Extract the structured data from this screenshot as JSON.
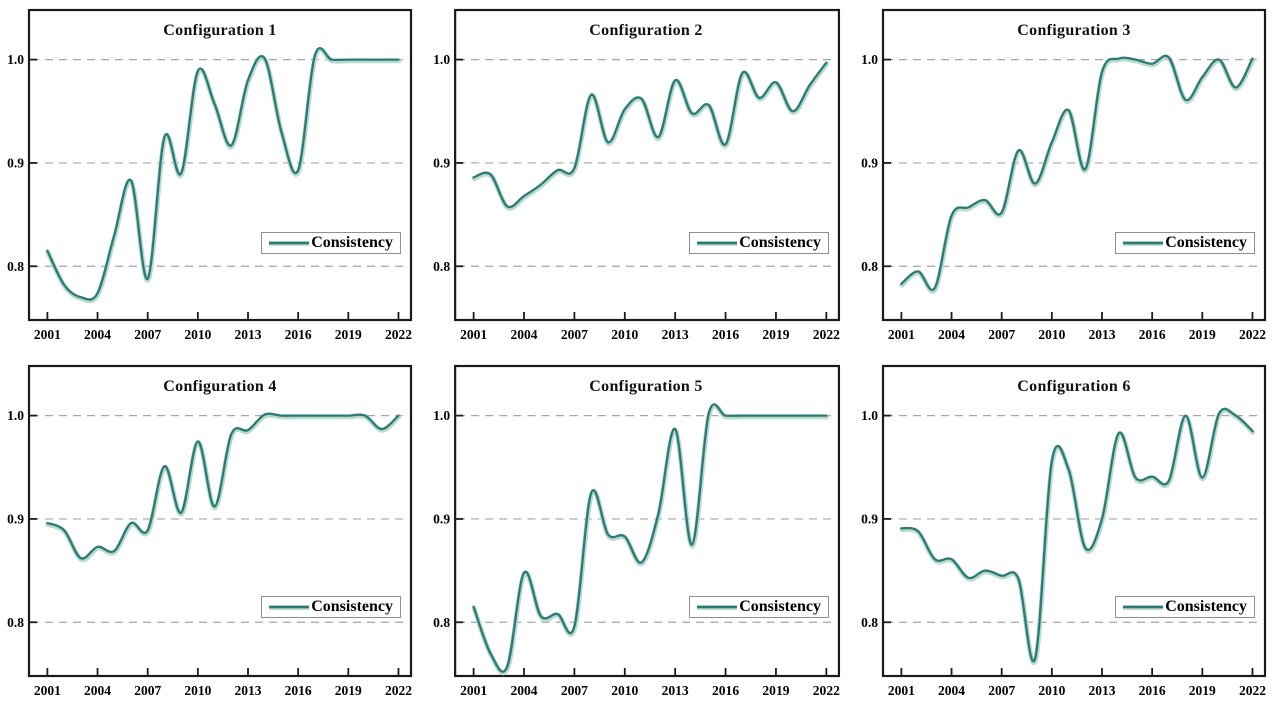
{
  "page": {
    "background": "#ffffff"
  },
  "style": {
    "line_color": "#2a7a77",
    "halo_color": "#b5d8ca",
    "grid_color": "#a5a5a5",
    "axis_color": "#1a1a1a",
    "text_color": "#000000"
  },
  "chart_data": [
    {
      "type": "line",
      "title": "Configuration 1",
      "legend": {
        "label": "Consistency",
        "position": "lower right"
      },
      "x": [
        2001,
        2002,
        2003,
        2004,
        2005,
        2006,
        2007,
        2008,
        2009,
        2010,
        2011,
        2012,
        2013,
        2014,
        2015,
        2016,
        2017,
        2018,
        2019,
        2020,
        2021,
        2022
      ],
      "series": [
        {
          "name": "Consistency",
          "values": [
            0.815,
            0.782,
            0.77,
            0.774,
            0.83,
            0.883,
            0.788,
            0.925,
            0.89,
            0.989,
            0.957,
            0.917,
            0.98,
            1.001,
            0.93,
            0.893,
            1.004,
            1.0,
            1.0,
            1.0,
            1.0,
            1.0
          ]
        }
      ],
      "xticks": [
        2001,
        2004,
        2007,
        2010,
        2013,
        2016,
        2019,
        2022
      ],
      "yticks": [
        0.8,
        0.9,
        1.0
      ],
      "xlim": [
        1999.9,
        2022.75
      ],
      "ylim": [
        0.748,
        1.048
      ],
      "xlabel": "",
      "ylabel": "",
      "grid": "horizontal-dashed"
    },
    {
      "type": "line",
      "title": "Configuration 2",
      "legend": {
        "label": "Consistency",
        "position": "lower right"
      },
      "x": [
        2001,
        2002,
        2003,
        2004,
        2005,
        2006,
        2007,
        2008,
        2009,
        2010,
        2011,
        2012,
        2013,
        2014,
        2015,
        2016,
        2017,
        2018,
        2019,
        2020,
        2021,
        2022
      ],
      "series": [
        {
          "name": "Consistency",
          "values": [
            0.886,
            0.889,
            0.858,
            0.868,
            0.879,
            0.893,
            0.895,
            0.966,
            0.92,
            0.952,
            0.962,
            0.925,
            0.98,
            0.948,
            0.956,
            0.918,
            0.987,
            0.963,
            0.978,
            0.95,
            0.975,
            0.997
          ]
        }
      ],
      "xticks": [
        2001,
        2004,
        2007,
        2010,
        2013,
        2016,
        2019,
        2022
      ],
      "yticks": [
        0.8,
        0.9,
        1.0
      ],
      "xlim": [
        1999.9,
        2022.75
      ],
      "ylim": [
        0.748,
        1.048
      ],
      "xlabel": "",
      "ylabel": "",
      "grid": "horizontal-dashed"
    },
    {
      "type": "line",
      "title": "Configuration 3",
      "legend": {
        "label": "Consistency",
        "position": "lower right"
      },
      "x": [
        2001,
        2002,
        2003,
        2004,
        2005,
        2006,
        2007,
        2008,
        2009,
        2010,
        2011,
        2012,
        2013,
        2014,
        2015,
        2016,
        2017,
        2018,
        2019,
        2020,
        2021,
        2022
      ],
      "series": [
        {
          "name": "Consistency",
          "values": [
            0.783,
            0.795,
            0.779,
            0.849,
            0.857,
            0.864,
            0.852,
            0.912,
            0.88,
            0.92,
            0.951,
            0.894,
            0.988,
            1.001,
            1.0,
            0.996,
            1.002,
            0.961,
            0.983,
            1.0,
            0.973,
            1.001
          ]
        }
      ],
      "xticks": [
        2001,
        2004,
        2007,
        2010,
        2013,
        2016,
        2019,
        2022
      ],
      "yticks": [
        0.8,
        0.9,
        1.0
      ],
      "xlim": [
        1999.9,
        2022.75
      ],
      "ylim": [
        0.748,
        1.048
      ],
      "xlabel": "",
      "ylabel": "",
      "grid": "horizontal-dashed"
    },
    {
      "type": "line",
      "title": "Configuration 4",
      "legend": {
        "label": "Consistency",
        "position": "lower right"
      },
      "x": [
        2001,
        2002,
        2003,
        2004,
        2005,
        2006,
        2007,
        2008,
        2009,
        2010,
        2011,
        2012,
        2013,
        2014,
        2015,
        2016,
        2017,
        2018,
        2019,
        2020,
        2021,
        2022
      ],
      "series": [
        {
          "name": "Consistency",
          "values": [
            0.896,
            0.889,
            0.862,
            0.873,
            0.869,
            0.896,
            0.889,
            0.951,
            0.906,
            0.975,
            0.912,
            0.982,
            0.986,
            1.001,
            1.0,
            1.0,
            1.0,
            1.0,
            1.0,
            1.0,
            0.987,
            1.0
          ]
        }
      ],
      "xticks": [
        2001,
        2004,
        2007,
        2010,
        2013,
        2016,
        2019,
        2022
      ],
      "yticks": [
        0.8,
        0.9,
        1.0
      ],
      "xlim": [
        1999.9,
        2022.75
      ],
      "ylim": [
        0.748,
        1.048
      ],
      "xlabel": "",
      "ylabel": "",
      "grid": "horizontal-dashed"
    },
    {
      "type": "line",
      "title": "Configuration 5",
      "legend": {
        "label": "Consistency",
        "position": "lower right"
      },
      "x": [
        2001,
        2002,
        2003,
        2004,
        2005,
        2006,
        2007,
        2008,
        2009,
        2010,
        2011,
        2012,
        2013,
        2014,
        2015,
        2016,
        2017,
        2018,
        2019,
        2020,
        2021,
        2022
      ],
      "series": [
        {
          "name": "Consistency",
          "values": [
            0.815,
            0.77,
            0.757,
            0.848,
            0.806,
            0.808,
            0.796,
            0.925,
            0.885,
            0.883,
            0.858,
            0.905,
            0.987,
            0.875,
            1.002,
            1.0,
            1.0,
            1.0,
            1.0,
            1.0,
            1.0,
            1.0
          ]
        }
      ],
      "xticks": [
        2001,
        2004,
        2007,
        2010,
        2013,
        2016,
        2019,
        2022
      ],
      "yticks": [
        0.8,
        0.9,
        1.0
      ],
      "xlim": [
        1999.9,
        2022.75
      ],
      "ylim": [
        0.748,
        1.048
      ],
      "xlabel": "",
      "ylabel": "",
      "grid": "horizontal-dashed"
    },
    {
      "type": "line",
      "title": "Configuration 6",
      "legend": {
        "label": "Consistency",
        "position": "lower right"
      },
      "x": [
        2001,
        2002,
        2003,
        2004,
        2005,
        2006,
        2007,
        2008,
        2009,
        2010,
        2011,
        2012,
        2013,
        2014,
        2015,
        2016,
        2017,
        2018,
        2019,
        2020,
        2021,
        2022
      ],
      "series": [
        {
          "name": "Consistency",
          "values": [
            0.891,
            0.888,
            0.861,
            0.861,
            0.843,
            0.85,
            0.845,
            0.842,
            0.765,
            0.956,
            0.948,
            0.872,
            0.9,
            0.983,
            0.94,
            0.941,
            0.937,
            1.0,
            0.94,
            1.002,
            1.0,
            0.985
          ]
        }
      ],
      "xticks": [
        2001,
        2004,
        2007,
        2010,
        2013,
        2016,
        2019,
        2022
      ],
      "yticks": [
        0.8,
        0.9,
        1.0
      ],
      "xlim": [
        1999.9,
        2022.75
      ],
      "ylim": [
        0.748,
        1.048
      ],
      "xlabel": "",
      "ylabel": "",
      "grid": "horizontal-dashed"
    }
  ]
}
